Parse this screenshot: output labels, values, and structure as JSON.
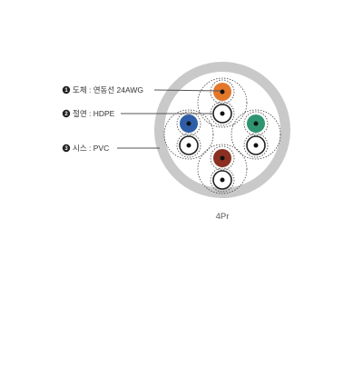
{
  "callouts": [
    {
      "number": "1",
      "label": "도체 : 연동선 24AWG"
    },
    {
      "number": "2",
      "label": "절연 : HDPE"
    },
    {
      "number": "3",
      "label": "시스 : PVC"
    }
  ],
  "caption": "4Pr",
  "pairs": [
    {
      "position": "top",
      "color": "#e3772a"
    },
    {
      "position": "left",
      "color": "#2f5ea8"
    },
    {
      "position": "right",
      "color": "#2f9470"
    },
    {
      "position": "bottom",
      "color": "#8a2f22"
    }
  ],
  "colors": {
    "jacket": "#c9c9c9",
    "conductor": "#111111",
    "leader_line": "#555555",
    "callout_marker": "#222222"
  }
}
